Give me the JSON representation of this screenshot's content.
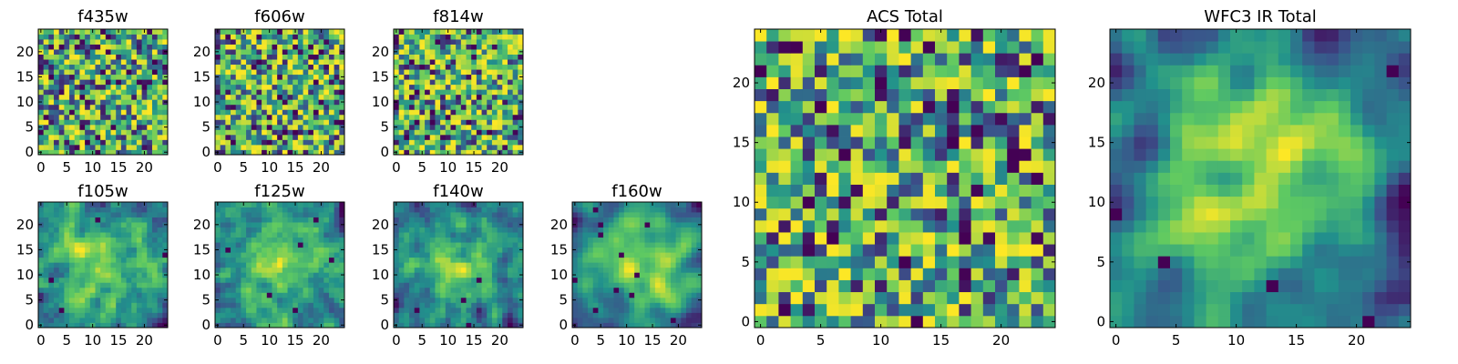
{
  "figure": {
    "colormap": [
      "#440154",
      "#3b528b",
      "#21918c",
      "#5ec962",
      "#fde725"
    ]
  },
  "chart_data": [
    {
      "type": "heatmap",
      "title": "f435w",
      "grid_size": 25,
      "seed": 11,
      "smooth": 0,
      "xticks": [
        0,
        5,
        10,
        15,
        20
      ],
      "yticks": [
        0,
        5,
        10,
        15,
        20
      ],
      "xtick_labels": [
        "0",
        "5",
        "10",
        "15",
        "20"
      ],
      "ytick_labels": [
        "0",
        "5",
        "10",
        "15",
        "20"
      ],
      "xlim": [
        -0.5,
        24.5
      ],
      "ylim": [
        -0.5,
        24.5
      ]
    },
    {
      "type": "heatmap",
      "title": "f606w",
      "grid_size": 25,
      "seed": 23,
      "smooth": 0,
      "xticks": [
        0,
        5,
        10,
        15,
        20
      ],
      "yticks": [
        0,
        5,
        10,
        15,
        20
      ],
      "xtick_labels": [
        "0",
        "5",
        "10",
        "15",
        "20"
      ],
      "ytick_labels": [
        "0",
        "5",
        "10",
        "15",
        "20"
      ],
      "xlim": [
        -0.5,
        24.5
      ],
      "ylim": [
        -0.5,
        24.5
      ]
    },
    {
      "type": "heatmap",
      "title": "f814w",
      "grid_size": 25,
      "seed": 37,
      "smooth": 0,
      "xticks": [
        0,
        5,
        10,
        15,
        20
      ],
      "yticks": [
        0,
        5,
        10,
        15,
        20
      ],
      "xtick_labels": [
        "0",
        "5",
        "10",
        "15",
        "20"
      ],
      "ytick_labels": [
        "0",
        "5",
        "10",
        "15",
        "20"
      ],
      "xlim": [
        -0.5,
        24.5
      ],
      "ylim": [
        -0.5,
        24.5
      ]
    },
    {
      "type": "heatmap",
      "title": "f105w",
      "grid_size": 25,
      "seed": 41,
      "smooth": 1,
      "xticks": [
        0,
        5,
        10,
        15,
        20
      ],
      "yticks": [
        0,
        5,
        10,
        15,
        20
      ],
      "xtick_labels": [
        "0",
        "5",
        "10",
        "15",
        "20"
      ],
      "ytick_labels": [
        "0",
        "5",
        "10",
        "15",
        "20"
      ],
      "xlim": [
        -0.5,
        24.5
      ],
      "ylim": [
        -0.5,
        24.5
      ]
    },
    {
      "type": "heatmap",
      "title": "f125w",
      "grid_size": 25,
      "seed": 53,
      "smooth": 1,
      "xticks": [
        0,
        5,
        10,
        15,
        20
      ],
      "yticks": [
        0,
        5,
        10,
        15,
        20
      ],
      "xtick_labels": [
        "0",
        "5",
        "10",
        "15",
        "20"
      ],
      "ytick_labels": [
        "0",
        "5",
        "10",
        "15",
        "20"
      ],
      "xlim": [
        -0.5,
        24.5
      ],
      "ylim": [
        -0.5,
        24.5
      ]
    },
    {
      "type": "heatmap",
      "title": "f140w",
      "grid_size": 25,
      "seed": 67,
      "smooth": 1,
      "xticks": [
        0,
        5,
        10,
        15,
        20
      ],
      "yticks": [
        0,
        5,
        10,
        15,
        20
      ],
      "xtick_labels": [
        "0",
        "5",
        "10",
        "15",
        "20"
      ],
      "ytick_labels": [
        "0",
        "5",
        "10",
        "15",
        "20"
      ],
      "xlim": [
        -0.5,
        24.5
      ],
      "ylim": [
        -0.5,
        24.5
      ]
    },
    {
      "type": "heatmap",
      "title": "f160w",
      "grid_size": 25,
      "seed": 79,
      "smooth": 2,
      "xticks": [
        0,
        5,
        10,
        15,
        20
      ],
      "yticks": [
        0,
        5,
        10,
        15,
        20
      ],
      "xtick_labels": [
        "0",
        "5",
        "10",
        "15",
        "20"
      ],
      "ytick_labels": [
        "0",
        "5",
        "10",
        "15",
        "20"
      ],
      "xlim": [
        -0.5,
        24.5
      ],
      "ylim": [
        -0.5,
        24.5
      ]
    },
    {
      "type": "heatmap",
      "title": "ACS Total",
      "grid_size": 25,
      "seed": 97,
      "smooth": 0,
      "xticks": [
        0,
        5,
        10,
        15,
        20
      ],
      "yticks": [
        0,
        5,
        10,
        15,
        20
      ],
      "xtick_labels": [
        "0",
        "5",
        "10",
        "15",
        "20"
      ],
      "ytick_labels": [
        "0",
        "5",
        "10",
        "15",
        "20"
      ],
      "xlim": [
        -0.5,
        24.5
      ],
      "ylim": [
        -0.5,
        24.5
      ]
    },
    {
      "type": "heatmap",
      "title": "WFC3 IR Total",
      "grid_size": 25,
      "seed": 113,
      "smooth": 2,
      "xticks": [
        0,
        5,
        10,
        15,
        20
      ],
      "yticks": [
        0,
        5,
        10,
        15,
        20
      ],
      "xtick_labels": [
        "0",
        "5",
        "10",
        "15",
        "20"
      ],
      "ytick_labels": [
        "0",
        "5",
        "10",
        "15",
        "20"
      ],
      "xlim": [
        -0.5,
        24.5
      ],
      "ylim": [
        -0.5,
        24.5
      ]
    }
  ]
}
